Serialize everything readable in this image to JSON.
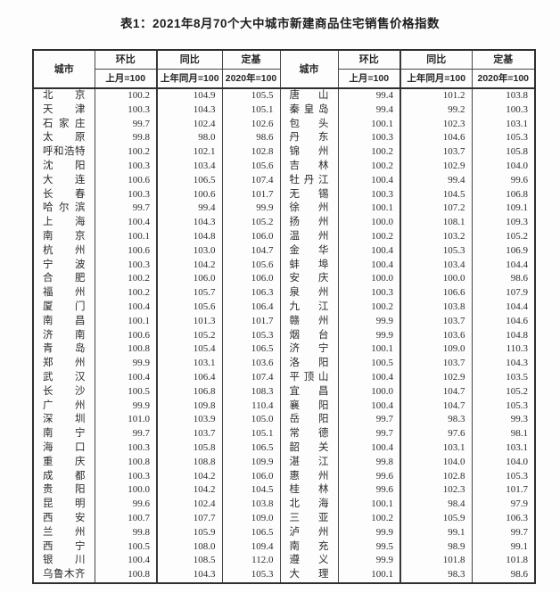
{
  "page": {
    "title": "表1：2021年8月70个大中城市新建商品住宅销售价格指数"
  },
  "header": {
    "city": "城市",
    "mom_label": "环比",
    "mom_sub": "上月=100",
    "yoy_label": "同比",
    "yoy_sub": "上年同月=100",
    "base_label": "定基",
    "base_sub": "2020年=100"
  },
  "left_rows": [
    {
      "city": "北京",
      "mom": "100.2",
      "yoy": "104.9",
      "base": "105.5"
    },
    {
      "city": "天津",
      "mom": "100.3",
      "yoy": "104.3",
      "base": "105.1"
    },
    {
      "city": "石家庄",
      "mom": "99.7",
      "yoy": "102.4",
      "base": "102.6"
    },
    {
      "city": "太原",
      "mom": "99.8",
      "yoy": "98.0",
      "base": "98.6"
    },
    {
      "city": "呼和浩特",
      "mom": "100.2",
      "yoy": "102.1",
      "base": "102.8"
    },
    {
      "city": "沈阳",
      "mom": "100.3",
      "yoy": "103.4",
      "base": "105.6"
    },
    {
      "city": "大连",
      "mom": "100.6",
      "yoy": "106.5",
      "base": "107.4"
    },
    {
      "city": "长春",
      "mom": "100.3",
      "yoy": "100.6",
      "base": "101.7"
    },
    {
      "city": "哈尔滨",
      "mom": "99.7",
      "yoy": "99.4",
      "base": "99.9"
    },
    {
      "city": "上海",
      "mom": "100.4",
      "yoy": "104.3",
      "base": "105.2"
    },
    {
      "city": "南京",
      "mom": "100.1",
      "yoy": "104.8",
      "base": "106.0"
    },
    {
      "city": "杭州",
      "mom": "100.6",
      "yoy": "103.0",
      "base": "104.7"
    },
    {
      "city": "宁波",
      "mom": "100.3",
      "yoy": "104.2",
      "base": "105.6"
    },
    {
      "city": "合肥",
      "mom": "100.2",
      "yoy": "106.0",
      "base": "106.0"
    },
    {
      "city": "福州",
      "mom": "100.2",
      "yoy": "105.7",
      "base": "106.3"
    },
    {
      "city": "厦门",
      "mom": "100.4",
      "yoy": "105.6",
      "base": "106.4"
    },
    {
      "city": "南昌",
      "mom": "100.1",
      "yoy": "101.3",
      "base": "101.7"
    },
    {
      "city": "济南",
      "mom": "100.6",
      "yoy": "105.2",
      "base": "105.3"
    },
    {
      "city": "青岛",
      "mom": "100.8",
      "yoy": "105.4",
      "base": "106.5"
    },
    {
      "city": "郑州",
      "mom": "99.9",
      "yoy": "103.1",
      "base": "103.6"
    },
    {
      "city": "武汉",
      "mom": "100.4",
      "yoy": "106.4",
      "base": "107.4"
    },
    {
      "city": "长沙",
      "mom": "100.5",
      "yoy": "106.8",
      "base": "108.3"
    },
    {
      "city": "广州",
      "mom": "99.9",
      "yoy": "109.8",
      "base": "110.4"
    },
    {
      "city": "深圳",
      "mom": "101.0",
      "yoy": "103.9",
      "base": "105.0"
    },
    {
      "city": "南宁",
      "mom": "99.7",
      "yoy": "103.7",
      "base": "105.1"
    },
    {
      "city": "海口",
      "mom": "100.3",
      "yoy": "105.8",
      "base": "106.5"
    },
    {
      "city": "重庆",
      "mom": "100.8",
      "yoy": "108.8",
      "base": "109.9"
    },
    {
      "city": "成都",
      "mom": "100.3",
      "yoy": "104.2",
      "base": "106.0"
    },
    {
      "city": "贵阳",
      "mom": "100.0",
      "yoy": "104.2",
      "base": "104.5"
    },
    {
      "city": "昆明",
      "mom": "99.6",
      "yoy": "102.4",
      "base": "103.8"
    },
    {
      "city": "西安",
      "mom": "100.7",
      "yoy": "107.7",
      "base": "109.0"
    },
    {
      "city": "兰州",
      "mom": "99.8",
      "yoy": "105.9",
      "base": "106.5"
    },
    {
      "city": "西宁",
      "mom": "100.5",
      "yoy": "108.0",
      "base": "109.4"
    },
    {
      "city": "银川",
      "mom": "100.4",
      "yoy": "108.5",
      "base": "112.0"
    },
    {
      "city": "乌鲁木齐",
      "mom": "100.8",
      "yoy": "104.3",
      "base": "105.3"
    }
  ],
  "right_rows": [
    {
      "city": "唐山",
      "mom": "99.4",
      "yoy": "101.2",
      "base": "103.8"
    },
    {
      "city": "秦皇岛",
      "mom": "99.4",
      "yoy": "99.2",
      "base": "100.3"
    },
    {
      "city": "包头",
      "mom": "100.1",
      "yoy": "102.3",
      "base": "103.1"
    },
    {
      "city": "丹东",
      "mom": "100.3",
      "yoy": "104.6",
      "base": "105.3"
    },
    {
      "city": "锦州",
      "mom": "100.2",
      "yoy": "103.7",
      "base": "105.8"
    },
    {
      "city": "吉林",
      "mom": "100.2",
      "yoy": "102.9",
      "base": "104.0"
    },
    {
      "city": "牡丹江",
      "mom": "100.4",
      "yoy": "99.4",
      "base": "99.6"
    },
    {
      "city": "无锡",
      "mom": "100.3",
      "yoy": "104.5",
      "base": "106.8"
    },
    {
      "city": "徐州",
      "mom": "100.1",
      "yoy": "107.2",
      "base": "109.1"
    },
    {
      "city": "扬州",
      "mom": "100.0",
      "yoy": "108.1",
      "base": "109.3"
    },
    {
      "city": "温州",
      "mom": "100.2",
      "yoy": "103.2",
      "base": "105.2"
    },
    {
      "city": "金华",
      "mom": "100.4",
      "yoy": "105.3",
      "base": "106.9"
    },
    {
      "city": "蚌埠",
      "mom": "100.4",
      "yoy": "103.4",
      "base": "104.4"
    },
    {
      "city": "安庆",
      "mom": "100.0",
      "yoy": "100.0",
      "base": "98.6"
    },
    {
      "city": "泉州",
      "mom": "100.3",
      "yoy": "106.6",
      "base": "107.9"
    },
    {
      "city": "九江",
      "mom": "100.2",
      "yoy": "103.8",
      "base": "104.4"
    },
    {
      "city": "赣州",
      "mom": "99.9",
      "yoy": "103.7",
      "base": "104.6"
    },
    {
      "city": "烟台",
      "mom": "99.9",
      "yoy": "103.6",
      "base": "104.8"
    },
    {
      "city": "济宁",
      "mom": "100.1",
      "yoy": "109.0",
      "base": "110.3"
    },
    {
      "city": "洛阳",
      "mom": "100.5",
      "yoy": "103.7",
      "base": "104.3"
    },
    {
      "city": "平顶山",
      "mom": "100.4",
      "yoy": "102.9",
      "base": "103.5"
    },
    {
      "city": "宜昌",
      "mom": "100.0",
      "yoy": "104.7",
      "base": "105.2"
    },
    {
      "city": "襄阳",
      "mom": "100.4",
      "yoy": "104.7",
      "base": "105.3"
    },
    {
      "city": "岳阳",
      "mom": "99.7",
      "yoy": "98.3",
      "base": "99.3"
    },
    {
      "city": "常德",
      "mom": "99.7",
      "yoy": "97.6",
      "base": "98.1"
    },
    {
      "city": "韶关",
      "mom": "100.4",
      "yoy": "103.1",
      "base": "103.1"
    },
    {
      "city": "湛江",
      "mom": "99.8",
      "yoy": "104.0",
      "base": "104.0"
    },
    {
      "city": "惠州",
      "mom": "99.6",
      "yoy": "102.8",
      "base": "105.3"
    },
    {
      "city": "桂林",
      "mom": "99.6",
      "yoy": "102.3",
      "base": "101.7"
    },
    {
      "city": "北海",
      "mom": "100.1",
      "yoy": "98.4",
      "base": "97.9"
    },
    {
      "city": "三亚",
      "mom": "100.2",
      "yoy": "105.9",
      "base": "106.3"
    },
    {
      "city": "泸州",
      "mom": "99.9",
      "yoy": "99.1",
      "base": "99.7"
    },
    {
      "city": "南充",
      "mom": "99.5",
      "yoy": "98.9",
      "base": "99.1"
    },
    {
      "city": "遵义",
      "mom": "99.9",
      "yoy": "101.8",
      "base": "101.8"
    },
    {
      "city": "大理",
      "mom": "100.1",
      "yoy": "98.3",
      "base": "98.6"
    }
  ]
}
